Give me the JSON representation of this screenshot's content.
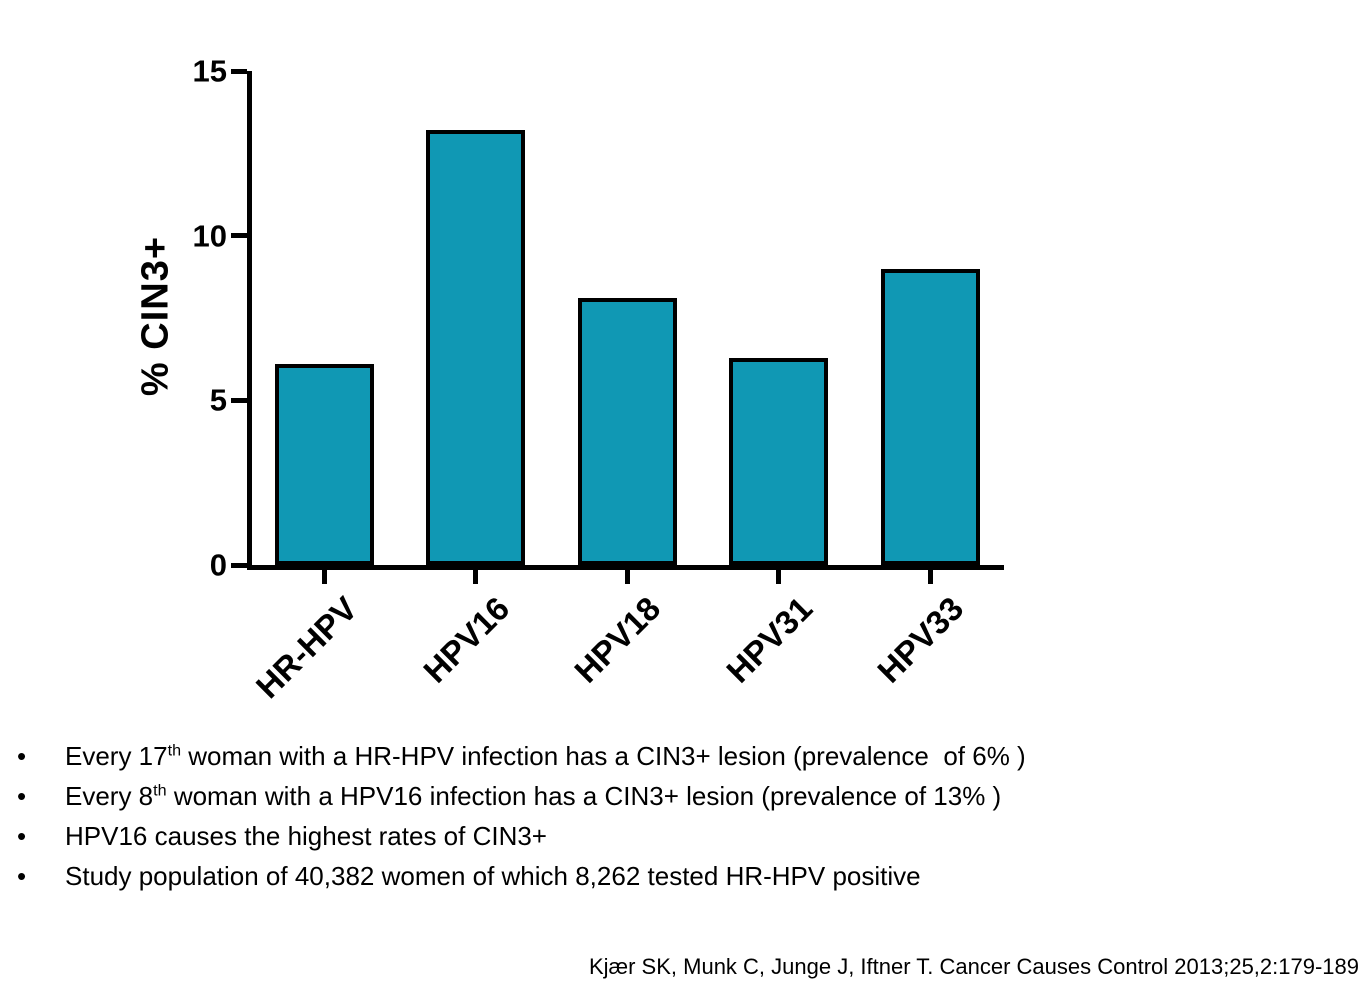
{
  "chart_data": {
    "type": "bar",
    "categories": [
      "HR-HPV",
      "HPV16",
      "HPV18",
      "HPV31",
      "HPV33"
    ],
    "values": [
      6.1,
      13.2,
      8.1,
      6.3,
      9.0
    ],
    "title": "",
    "xlabel": "",
    "ylabel": "% CIN3+",
    "ylim": [
      0,
      15
    ],
    "yticks": [
      0,
      5,
      10,
      15
    ],
    "grid": false,
    "legend": false,
    "bar_color": "#1098B4",
    "bar_border_color": "#000000",
    "axis_color": "#000000"
  },
  "bullet_glyph": "•",
  "bullets": [
    {
      "pre": "Every 17",
      "sup": "th",
      "post": " woman with a HR-HPV infection has a CIN3+ lesion (prevalence  of 6% )"
    },
    {
      "pre": "Every 8",
      "sup": "th",
      "post": " woman with a HPV16 infection has a CIN3+ lesion (prevalence of 13% )"
    },
    {
      "pre": "HPV16 causes the highest rates of CIN3+",
      "sup": "",
      "post": ""
    },
    {
      "pre": "Study population of 40,382 women of which 8,262 tested HR-HPV positive",
      "sup": "",
      "post": ""
    }
  ],
  "citation": "Kjær SK, Munk C, Junge J, Iftner T. Cancer Causes Control 2013;25,2:179-189"
}
